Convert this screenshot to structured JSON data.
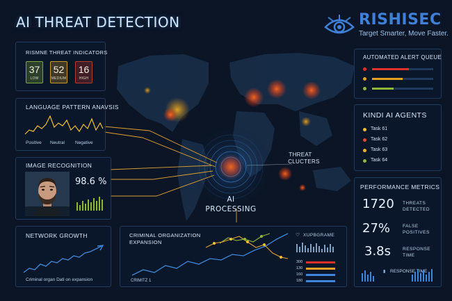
{
  "header": {
    "title": "AI THREAT DETECTION",
    "brand_name": "RISHISEC",
    "brand_tagline": "Target Smarter, Move Faster."
  },
  "threat_indicators": {
    "title": "RISMNE THREAT INDICATORS",
    "items": [
      {
        "value": "37",
        "label": "LOW",
        "color": "#7fa83a"
      },
      {
        "value": "52",
        "label": "MEDIUM",
        "color": "#c89a2a"
      },
      {
        "value": "16",
        "label": "HIGH",
        "color": "#b83a2e"
      }
    ]
  },
  "language_panel": {
    "title": "LANGUAGE PATTERN ANAVSIS",
    "labels": [
      "Positive",
      "Neutral",
      "Negative"
    ]
  },
  "image_panel": {
    "title": "IMAGE RECOGNITION",
    "score": "98.6 %"
  },
  "network_panel": {
    "title": "NETWORK GROWTH",
    "caption": "Criminal organ Dati on expansion"
  },
  "expansion_panel": {
    "title_line1": "CRIMINAL ORGANIZATION",
    "title_line2": "EXPANSION",
    "footer": "CRIMITZ 1",
    "legend_title": "XUPBGRAME",
    "legend_values": [
      "300",
      "130",
      "160",
      "180"
    ]
  },
  "center": {
    "processing_line1": "AI",
    "processing_line2": "PROCESSING",
    "clusters_line1": "THREAT",
    "clusters_line2": "CLUCTERS"
  },
  "alert_queue": {
    "title": "AUTOMATED ALERT QUEUE",
    "items": [
      {
        "color": "#e0302a",
        "level": 0.6
      },
      {
        "color": "#e8a020",
        "level": 0.5
      },
      {
        "color": "#8fb83a",
        "level": 0.35
      }
    ]
  },
  "agents": {
    "title": "KINDI AI AGENTS",
    "items": [
      {
        "label": "Task 61",
        "color": "#f0c030"
      },
      {
        "label": "Task 62",
        "color": "#e04a2a"
      },
      {
        "label": "Task 63",
        "color": "#f0b020"
      },
      {
        "label": "Task 64",
        "color": "#8fb83a"
      }
    ]
  },
  "metrics": {
    "title": "PERFORMANCE METRICS",
    "items": [
      {
        "value": "1720",
        "label": "THREATS\nDETECTED"
      },
      {
        "value": "27%",
        "label": "FALSE\nPOSITIVES"
      },
      {
        "value": "3.8s",
        "label": "RESPONSE\nTIME"
      }
    ],
    "response_label": "RESPONSE TIME"
  }
}
